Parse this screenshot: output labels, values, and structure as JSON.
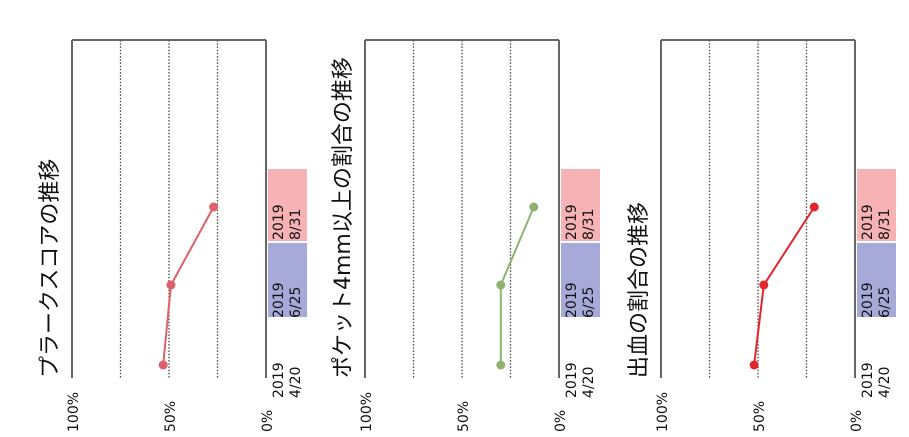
{
  "chart_data": [
    {
      "type": "line",
      "title": "プラークスコアの推移",
      "x_ticks": [
        "100%",
        "50%",
        "0%"
      ],
      "xlim": [
        100,
        0
      ],
      "grid": true,
      "color": "#e0606a",
      "dates": [
        {
          "year": "2019",
          "md": "4/20",
          "badge": "none"
        },
        {
          "year": "2019",
          "md": "6/25",
          "badge": "blue"
        },
        {
          "year": "2019",
          "md": "8/31",
          "badge": "red"
        }
      ],
      "values": [
        53,
        49,
        27
      ]
    },
    {
      "type": "line",
      "title": "ポケット4mm以上の割合の推移",
      "x_ticks": [
        "100%",
        "50%",
        "0%"
      ],
      "xlim": [
        100,
        0
      ],
      "grid": true,
      "color": "#8db36e",
      "dates": [
        {
          "year": "2019",
          "md": "4/20",
          "badge": "none"
        },
        {
          "year": "2019",
          "md": "6/25",
          "badge": "blue"
        },
        {
          "year": "2019",
          "md": "8/31",
          "badge": "red"
        }
      ],
      "values": [
        30,
        30,
        13
      ]
    },
    {
      "type": "line",
      "title": "出血の割合の推移",
      "x_ticks": [
        "100%",
        "50%",
        "0%"
      ],
      "xlim": [
        100,
        0
      ],
      "grid": true,
      "color": "#e2262e",
      "dates": [
        {
          "year": "2019",
          "md": "4/20",
          "badge": "none"
        },
        {
          "year": "2019",
          "md": "6/25",
          "badge": "blue"
        },
        {
          "year": "2019",
          "md": "8/31",
          "badge": "red"
        }
      ],
      "values": [
        52,
        47,
        21
      ]
    }
  ],
  "style": {
    "badge_blue": "#a7a9d8",
    "badge_red": "#f6b2b4",
    "badge_text_blue": "#2f46b0",
    "badge_text_red": "#d8262d",
    "grid_color": "#555555",
    "axis_color": "#666666"
  }
}
